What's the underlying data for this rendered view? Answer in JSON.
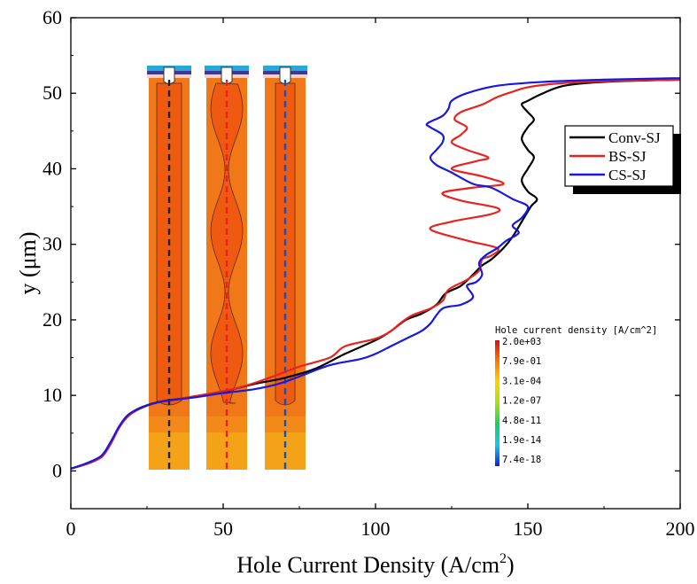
{
  "chart_data": {
    "type": "line",
    "xlabel": "Hole Current Density (A/cm",
    "xlabel_sup": "2",
    "xlabel_tail": ")",
    "ylabel": "y (μm)",
    "xlim": [
      0,
      200
    ],
    "ylim": [
      -5,
      60
    ],
    "xticks": [
      0,
      50,
      100,
      150,
      200
    ],
    "yticks": [
      0,
      10,
      20,
      30,
      40,
      50,
      60
    ],
    "grid": false,
    "legend_position": "right",
    "series": [
      {
        "name": "Conv-SJ",
        "color": "#000000",
        "points": [
          [
            0,
            0.3
          ],
          [
            5,
            0.9
          ],
          [
            9,
            1.6
          ],
          [
            12,
            3.0
          ],
          [
            15,
            5.2
          ],
          [
            18,
            7.0
          ],
          [
            21,
            8.0
          ],
          [
            25,
            8.7
          ],
          [
            30,
            9.2
          ],
          [
            40,
            9.8
          ],
          [
            50,
            10.5
          ],
          [
            60,
            11.5
          ],
          [
            70,
            12.3
          ],
          [
            80,
            13.5
          ],
          [
            90,
            15.5
          ],
          [
            100,
            17.3
          ],
          [
            105,
            18.5
          ],
          [
            110,
            20.0
          ],
          [
            115,
            20.8
          ],
          [
            120,
            22.0
          ],
          [
            123,
            23.5
          ],
          [
            128,
            24.5
          ],
          [
            132,
            26.0
          ],
          [
            135,
            27.2
          ],
          [
            138,
            28.0
          ],
          [
            142,
            29.5
          ],
          [
            145,
            31.0
          ],
          [
            148,
            33.0
          ],
          [
            151,
            35.0
          ],
          [
            153,
            36.0
          ],
          [
            150,
            37.0
          ],
          [
            148,
            38.5
          ],
          [
            150,
            40.0
          ],
          [
            152,
            41.5
          ],
          [
            150,
            42.5
          ],
          [
            148,
            44.0
          ],
          [
            150,
            45.5
          ],
          [
            152,
            46.5
          ],
          [
            150,
            47.5
          ],
          [
            148,
            48.5
          ],
          [
            150,
            49.0
          ],
          [
            155,
            50.0
          ],
          [
            162,
            51.0
          ],
          [
            175,
            51.5
          ],
          [
            200,
            51.8
          ]
        ]
      },
      {
        "name": "BS-SJ",
        "color": "#e8231f",
        "points": [
          [
            0,
            0.3
          ],
          [
            5,
            0.9
          ],
          [
            10,
            1.8
          ],
          [
            13,
            3.5
          ],
          [
            16,
            5.8
          ],
          [
            19,
            7.3
          ],
          [
            23,
            8.3
          ],
          [
            28,
            9.0
          ],
          [
            35,
            9.5
          ],
          [
            45,
            10.2
          ],
          [
            55,
            11.0
          ],
          [
            65,
            12.3
          ],
          [
            75,
            13.8
          ],
          [
            85,
            15.0
          ],
          [
            90,
            16.5
          ],
          [
            100,
            17.5
          ],
          [
            105,
            18.5
          ],
          [
            108,
            19.5
          ],
          [
            112,
            20.6
          ],
          [
            118,
            21.5
          ],
          [
            122,
            22.5
          ],
          [
            124,
            24.0
          ],
          [
            130,
            25.3
          ],
          [
            134,
            26.5
          ],
          [
            135,
            28.0
          ],
          [
            138,
            28.5
          ],
          [
            140,
            29.5
          ],
          [
            130,
            30.5
          ],
          [
            118,
            32.0
          ],
          [
            125,
            33.0
          ],
          [
            138,
            34.0
          ],
          [
            140,
            34.8
          ],
          [
            128,
            35.8
          ],
          [
            122,
            36.8
          ],
          [
            132,
            37.5
          ],
          [
            142,
            38.0
          ],
          [
            135,
            39.0
          ],
          [
            125,
            40.0
          ],
          [
            133,
            41.0
          ],
          [
            137,
            41.5
          ],
          [
            130,
            42.5
          ],
          [
            125,
            43.5
          ],
          [
            128,
            44.5
          ],
          [
            130,
            45.5
          ],
          [
            126,
            46.5
          ],
          [
            128,
            47.5
          ],
          [
            135,
            48.5
          ],
          [
            140,
            49.5
          ],
          [
            145,
            50.2
          ],
          [
            150,
            50.8
          ],
          [
            160,
            51.3
          ],
          [
            175,
            51.6
          ],
          [
            200,
            51.8
          ]
        ]
      },
      {
        "name": "CS-SJ",
        "color": "#1818e0",
        "points": [
          [
            0,
            0.3
          ],
          [
            5,
            1.0
          ],
          [
            10,
            2.0
          ],
          [
            13,
            3.8
          ],
          [
            16,
            6.0
          ],
          [
            19,
            7.5
          ],
          [
            24,
            8.5
          ],
          [
            30,
            9.2
          ],
          [
            40,
            9.7
          ],
          [
            50,
            10.3
          ],
          [
            60,
            10.8
          ],
          [
            68,
            11.5
          ],
          [
            75,
            12.5
          ],
          [
            85,
            14.0
          ],
          [
            95,
            14.8
          ],
          [
            100,
            15.5
          ],
          [
            105,
            16.5
          ],
          [
            110,
            17.5
          ],
          [
            115,
            18.5
          ],
          [
            118,
            19.5
          ],
          [
            122,
            21.5
          ],
          [
            128,
            22.0
          ],
          [
            132,
            23.0
          ],
          [
            130,
            24.5
          ],
          [
            133,
            25.0
          ],
          [
            135,
            26.0
          ],
          [
            134,
            27.5
          ],
          [
            136,
            28.5
          ],
          [
            140,
            29.5
          ],
          [
            143,
            30.5
          ],
          [
            147,
            31.5
          ],
          [
            145,
            32.5
          ],
          [
            148,
            33.5
          ],
          [
            150,
            35.0
          ],
          [
            145,
            36.0
          ],
          [
            138,
            37.5
          ],
          [
            132,
            38.0
          ],
          [
            125,
            39.5
          ],
          [
            120,
            40.5
          ],
          [
            118,
            41.5
          ],
          [
            120,
            42.5
          ],
          [
            122,
            43.5
          ],
          [
            122,
            44.5
          ],
          [
            118,
            45.5
          ],
          [
            117,
            46.0
          ],
          [
            122,
            47.0
          ],
          [
            124,
            48.0
          ],
          [
            125,
            49.0
          ],
          [
            130,
            50.0
          ],
          [
            140,
            51.0
          ],
          [
            155,
            51.5
          ],
          [
            175,
            51.8
          ],
          [
            200,
            52.0
          ]
        ]
      }
    ]
  },
  "colorbar": {
    "title": "Hole current density [A/cm^2]",
    "labels": [
      "2.0e+03",
      "7.9e-01",
      "3.1e-04",
      "1.2e-07",
      "4.8e-11",
      "1.9e-14",
      "7.4e-18"
    ],
    "colors": [
      "#d0101a",
      "#ff7a00",
      "#ffd400",
      "#a8e010",
      "#16d060",
      "#18c8e8",
      "#1020d8"
    ]
  },
  "inset": {
    "devices": [
      {
        "dash_color": "#222222",
        "style": "conv"
      },
      {
        "dash_color": "#e8231f",
        "style": "bs"
      },
      {
        "dash_color": "#1a4fb0",
        "style": "cs"
      }
    ],
    "fill_top": "#f07818",
    "fill_core": "#ee5a10",
    "fill_bottom": "#f4a318",
    "electrode": "#29a8d8"
  }
}
